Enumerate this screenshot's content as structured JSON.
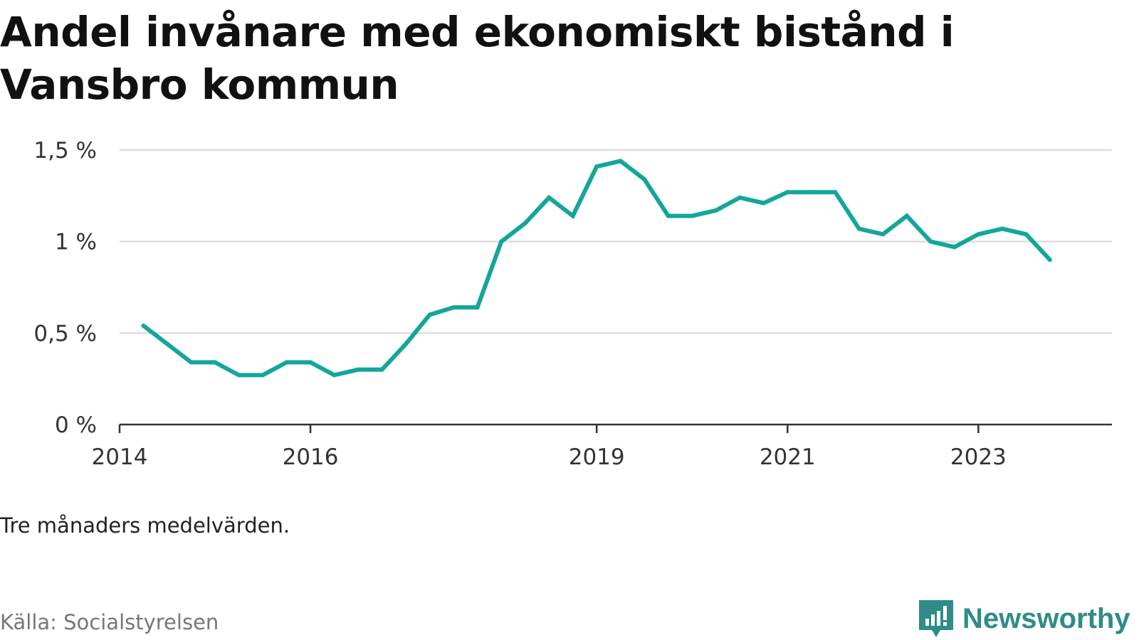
{
  "title": "Andel invånare med ekonomiskt bistånd i Vansbro kommun",
  "note": "Tre månaders medelvärden.",
  "source": "Källa: Socialstyrelsen",
  "brand": {
    "name": "Newsworthy",
    "icon": "newsworthy-logo-icon",
    "color": "#2f8c88"
  },
  "colors": {
    "line": "#14a69a",
    "grid": "#dddddd",
    "axis": "#333333"
  },
  "chart_data": {
    "type": "line",
    "title": "Andel invånare med ekonomiskt bistånd i Vansbro kommun",
    "xlabel": "",
    "ylabel": "",
    "ylim": [
      0,
      1.5
    ],
    "xlim": [
      2014.0,
      2024.4
    ],
    "grid": true,
    "y_ticks": [
      {
        "value": 0,
        "label": "0 %"
      },
      {
        "value": 0.5,
        "label": "0,5 %"
      },
      {
        "value": 1,
        "label": "1 %"
      },
      {
        "value": 1.5,
        "label": "1,5 %"
      }
    ],
    "x_ticks": [
      {
        "value": 2014,
        "label": "2014"
      },
      {
        "value": 2016,
        "label": "2016"
      },
      {
        "value": 2019,
        "label": "2019"
      },
      {
        "value": 2021,
        "label": "2021"
      },
      {
        "value": 2023,
        "label": "2023"
      }
    ],
    "series": [
      {
        "x": [
          2014.25,
          2014.5,
          2014.75,
          2015.0,
          2015.25,
          2015.5,
          2015.75,
          2016.0,
          2016.25,
          2016.5,
          2016.75,
          2017.0,
          2017.25,
          2017.5,
          2017.75,
          2018.0,
          2018.25,
          2018.5,
          2018.75,
          2019.0,
          2019.25,
          2019.5,
          2019.75,
          2020.0,
          2020.25,
          2020.5,
          2020.75,
          2021.0,
          2021.25,
          2021.5,
          2021.75,
          2022.0,
          2022.25,
          2022.5,
          2022.75,
          2023.0,
          2023.25,
          2023.5,
          2023.75
        ],
        "values": [
          0.54,
          0.44,
          0.34,
          0.34,
          0.27,
          0.27,
          0.34,
          0.34,
          0.27,
          0.3,
          0.3,
          0.44,
          0.6,
          0.64,
          0.64,
          1.0,
          1.1,
          1.24,
          1.14,
          1.41,
          1.44,
          1.34,
          1.14,
          1.14,
          1.17,
          1.24,
          1.21,
          1.27,
          1.27,
          1.27,
          1.07,
          1.04,
          1.14,
          1.0,
          0.97,
          1.04,
          1.07,
          1.04,
          0.9
        ]
      }
    ]
  }
}
